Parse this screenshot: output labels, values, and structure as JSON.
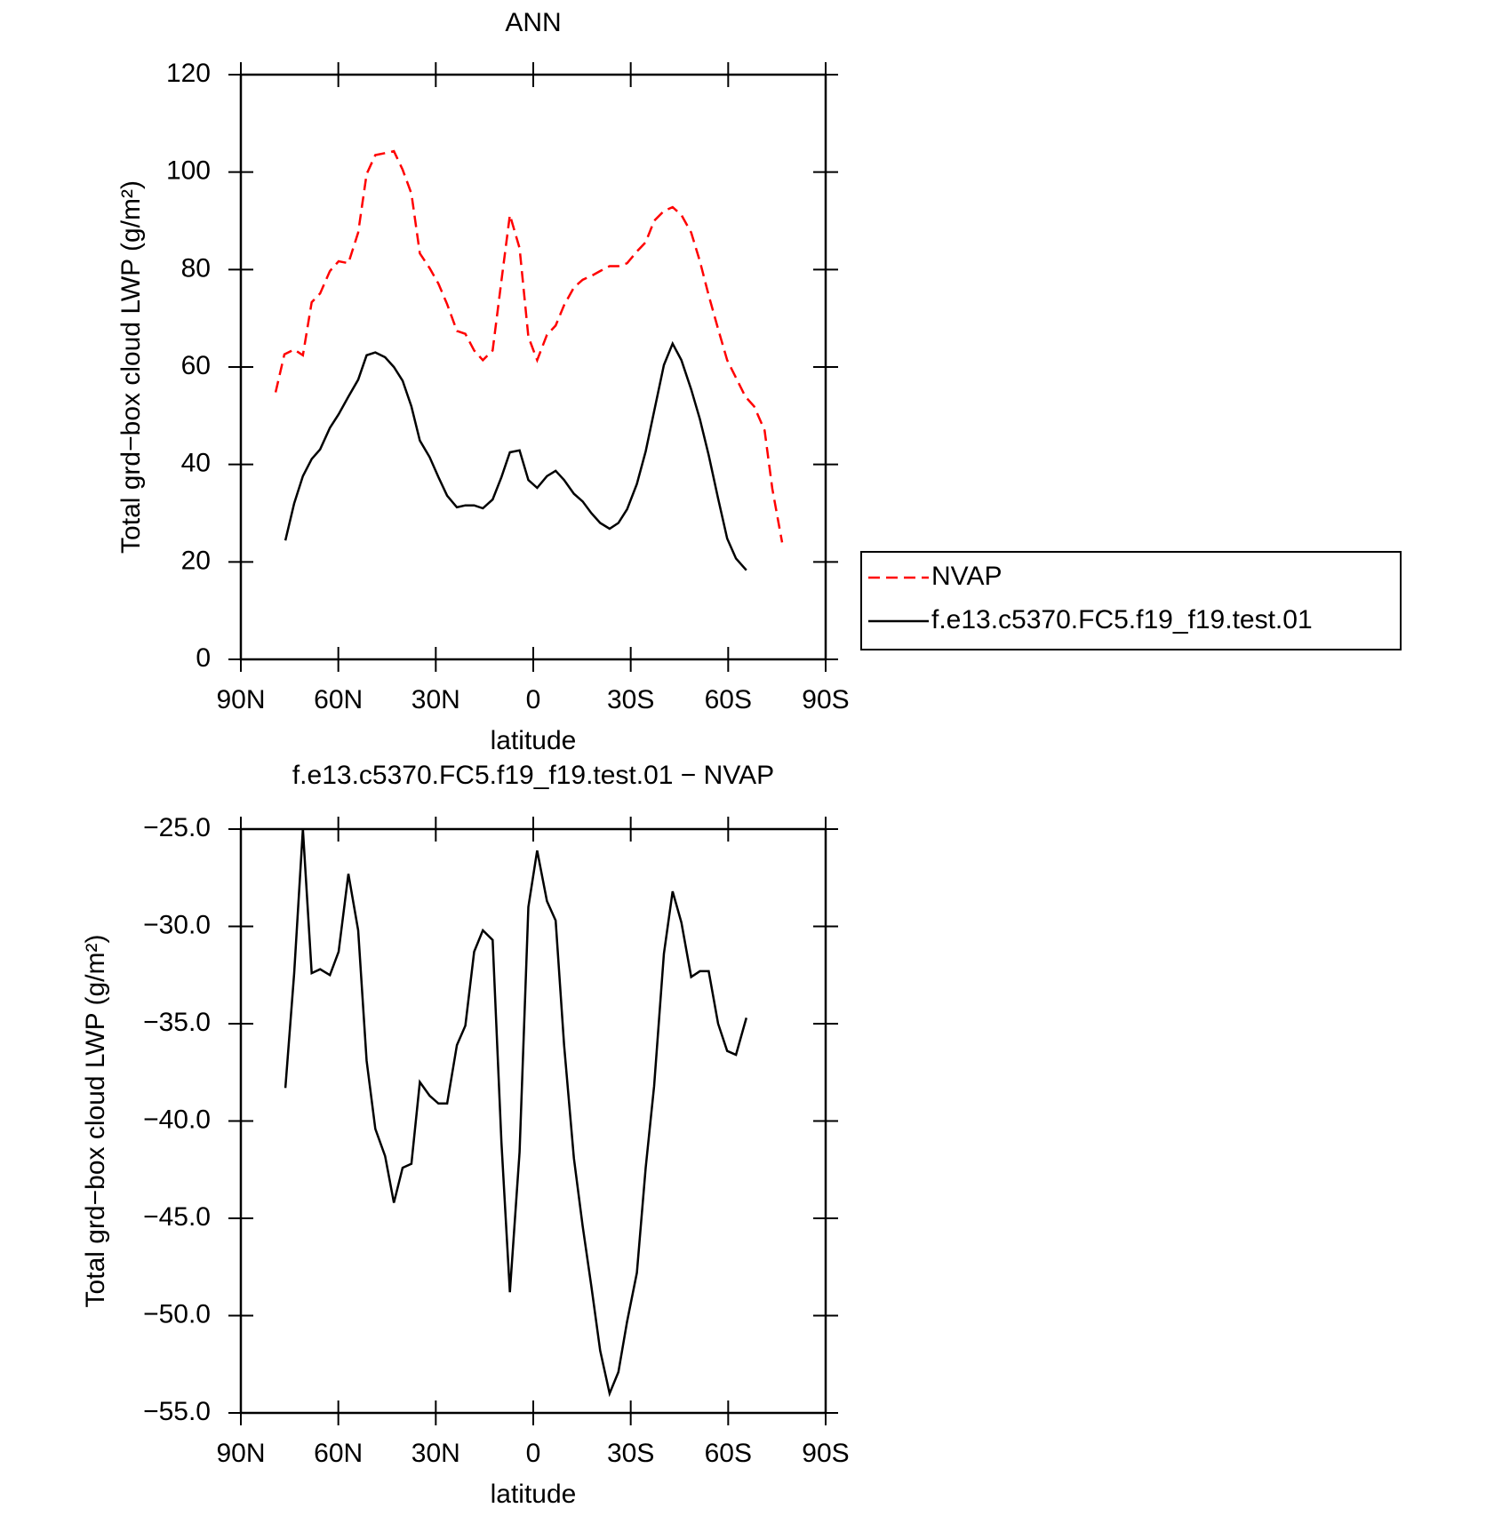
{
  "chart_data": [
    {
      "type": "line",
      "title": "ANN",
      "xlabel": "latitude",
      "ylabel": "Total grd−box cloud LWP (g/m²)",
      "xlim": [
        90,
        -90
      ],
      "xticks": [
        {
          "value": 90,
          "label": "90N"
        },
        {
          "value": 60,
          "label": "60N"
        },
        {
          "value": 30,
          "label": "30N"
        },
        0,
        {
          "value": -30,
          "label": "30S"
        },
        {
          "value": -60,
          "label": "60S"
        },
        {
          "value": -90,
          "label": "90S"
        }
      ],
      "ylim": [
        0,
        120
      ],
      "yticks": [
        0,
        20,
        40,
        60,
        80,
        100,
        120
      ],
      "legend": "right",
      "series": [
        {
          "name": "NVAP",
          "color": "#ff0000",
          "dashed": true,
          "x": [
            79.3,
            76.6,
            73.6,
            70.9,
            68.2,
            65.6,
            62.6,
            59.9,
            56.9,
            53.9,
            51.3,
            48.6,
            45.6,
            42.9,
            40.2,
            37.5,
            34.9,
            31.9,
            29.2,
            26.5,
            23.5,
            20.9,
            18.2,
            15.5,
            12.5,
            9.8,
            7.2,
            4.2,
            1.5,
            -1.2,
            -4.2,
            -6.9,
            -9.5,
            -12.5,
            -15.2,
            -17.9,
            -20.6,
            -23.5,
            -26.2,
            -28.9,
            -31.9,
            -34.6,
            -37.2,
            -40.2,
            -42.9,
            -45.6,
            -48.6,
            -51.3,
            -54,
            -56.9,
            -59.7,
            -62.4,
            -65.3,
            -68,
            -71.2,
            -73.6,
            -76.6
          ],
          "values": [
            54.8,
            62.6,
            63.6,
            62.4,
            73.3,
            75.1,
            79.7,
            81.7,
            81.3,
            87.6,
            99.6,
            103.5,
            103.9,
            104.3,
            100.5,
            95.6,
            83.3,
            80.3,
            77.1,
            72.9,
            67.4,
            66.8,
            63.4,
            61.4,
            63.4,
            77.7,
            91.2,
            84.4,
            66.2,
            61.4,
            66.6,
            68.5,
            72.7,
            76.3,
            77.9,
            78.7,
            79.7,
            80.7,
            80.7,
            81.3,
            83.7,
            85.6,
            90,
            92,
            92.8,
            91.2,
            87.6,
            81.7,
            74.7,
            67.8,
            61.4,
            57.8,
            53.9,
            51.9,
            47,
            35,
            24
          ]
        },
        {
          "name": "f.e13.c5370.FC5.f19_f19.test.01",
          "color": "#000000",
          "dashed": false,
          "x": [
            76.3,
            73.6,
            70.9,
            68.2,
            65.6,
            62.6,
            59.9,
            56.9,
            53.9,
            51.3,
            48.6,
            45.6,
            42.9,
            40.2,
            37.5,
            34.9,
            31.9,
            29.2,
            26.5,
            23.5,
            20.9,
            18.2,
            15.5,
            12.5,
            9.8,
            7.2,
            4.2,
            1.5,
            -1.2,
            -4.2,
            -6.9,
            -9.5,
            -12.5,
            -15.2,
            -17.9,
            -20.6,
            -23.5,
            -26.2,
            -28.9,
            -31.9,
            -34.6,
            -37.2,
            -40.2,
            -42.9,
            -45.6,
            -48.6,
            -51.3,
            -54,
            -56.9,
            -59.7,
            -62.4,
            -65.6
          ],
          "values": [
            24.4,
            32,
            37.6,
            41.1,
            43.1,
            47.5,
            50.3,
            53.9,
            57.4,
            62.4,
            63,
            62,
            60,
            57.2,
            51.9,
            44.9,
            41.5,
            37.4,
            33.6,
            31.2,
            31.6,
            31.6,
            31,
            32.8,
            37.4,
            42.5,
            42.9,
            36.8,
            35.2,
            37.6,
            38.7,
            36.8,
            34,
            32.4,
            30,
            28,
            26.8,
            28,
            30.8,
            36,
            42.7,
            50.9,
            60.4,
            64.8,
            61.4,
            55.4,
            49.3,
            41.9,
            33,
            24.8,
            20.7,
            18.3
          ]
        }
      ]
    },
    {
      "type": "line",
      "title": "f.e13.c5370.FC5.f19_f19.test.01  −  NVAP",
      "xlabel": "latitude",
      "ylabel": "Total grd−box cloud LWP (g/m²)",
      "xlim": [
        90,
        -90
      ],
      "xticks": [
        {
          "value": 90,
          "label": "90N"
        },
        {
          "value": 60,
          "label": "60N"
        },
        {
          "value": 30,
          "label": "30N"
        },
        0,
        {
          "value": -30,
          "label": "30S"
        },
        {
          "value": -60,
          "label": "60S"
        },
        {
          "value": -90,
          "label": "90S"
        }
      ],
      "ylim": [
        -55,
        -25
      ],
      "yticks": [
        {
          "value": -55,
          "label": "−55.0"
        },
        {
          "value": -50,
          "label": "−50.0"
        },
        {
          "value": -45,
          "label": "−45.0"
        },
        {
          "value": -40,
          "label": "−40.0"
        },
        {
          "value": -35,
          "label": "−35.0"
        },
        {
          "value": -30,
          "label": "−30.0"
        },
        {
          "value": -25,
          "label": "−25.0"
        }
      ],
      "series": [
        {
          "color": "#000000",
          "dashed": false,
          "x": [
            76.3,
            73.6,
            70.9,
            68.2,
            65.6,
            62.6,
            59.9,
            56.9,
            53.9,
            51.3,
            48.6,
            45.6,
            42.9,
            40.2,
            37.5,
            34.9,
            31.9,
            29.2,
            26.5,
            23.5,
            20.9,
            18.2,
            15.5,
            12.5,
            9.8,
            7.2,
            4.2,
            1.5,
            -1.2,
            -4.2,
            -6.9,
            -9.5,
            -12.5,
            -15.2,
            -17.9,
            -20.6,
            -23.5,
            -26.2,
            -28.9,
            -31.9,
            -34.6,
            -37.2,
            -40.2,
            -42.9,
            -45.6,
            -48.6,
            -51.3,
            -54,
            -56.9,
            -59.7,
            -62.4,
            -65.6
          ],
          "values": [
            -38.3,
            -32.4,
            -25,
            -32.4,
            -32.2,
            -32.5,
            -31.3,
            -27.3,
            -30.2,
            -36.9,
            -40.4,
            -41.8,
            -44.2,
            -42.4,
            -42.2,
            -38,
            -38.7,
            -39.1,
            -39.1,
            -36.1,
            -35.1,
            -31.3,
            -30.2,
            -30.7,
            -41.1,
            -48.8,
            -41.6,
            -29,
            -26.1,
            -28.7,
            -29.7,
            -36.1,
            -41.9,
            -45.4,
            -48.5,
            -51.8,
            -54,
            -52.9,
            -50.3,
            -47.8,
            -42.4,
            -38.2,
            -31.4,
            -28.2,
            -29.8,
            -32.6,
            -32.3,
            -32.3,
            -35,
            -36.4,
            -36.6,
            -34.7
          ]
        }
      ]
    }
  ]
}
